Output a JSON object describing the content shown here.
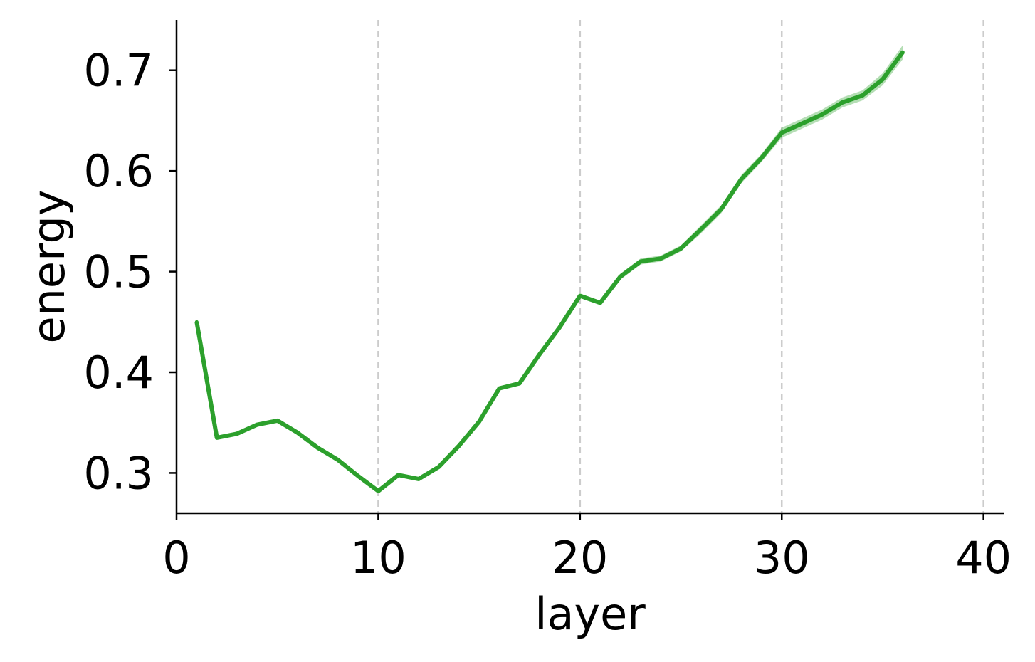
{
  "chart_data": {
    "type": "line",
    "xlabel": "layer",
    "ylabel": "energy",
    "xlim": [
      0,
      41
    ],
    "ylim": [
      0.26,
      0.75
    ],
    "xticks": [
      0,
      10,
      20,
      30,
      40
    ],
    "xtick_labels": [
      "0",
      "10",
      "20",
      "30",
      "40"
    ],
    "yticks": [
      0.3,
      0.4,
      0.5,
      0.6,
      0.7
    ],
    "ytick_labels": [
      "0.3",
      "0.4",
      "0.5",
      "0.6",
      "0.7"
    ],
    "grid": "vertical dashed at x ticks",
    "legend": "none",
    "series": [
      {
        "color": "#2ca02c",
        "band_color": "#2ca02c",
        "x": [
          1,
          2,
          3,
          4,
          5,
          6,
          7,
          8,
          9,
          10,
          11,
          12,
          13,
          14,
          15,
          16,
          17,
          18,
          19,
          20,
          21,
          22,
          23,
          24,
          25,
          26,
          27,
          28,
          29,
          30,
          31,
          32,
          33,
          34,
          35,
          36
        ],
        "values": [
          0.45,
          0.335,
          0.339,
          0.348,
          0.352,
          0.34,
          0.325,
          0.313,
          0.297,
          0.282,
          0.298,
          0.294,
          0.306,
          0.327,
          0.351,
          0.384,
          0.389,
          0.418,
          0.445,
          0.476,
          0.469,
          0.495,
          0.51,
          0.513,
          0.523,
          0.542,
          0.562,
          0.592,
          0.613,
          0.638,
          0.647,
          0.656,
          0.668,
          0.675,
          0.691,
          0.718
        ],
        "band": [
          0.001,
          0.001,
          0.001,
          0.001,
          0.001,
          0.001,
          0.001,
          0.001,
          0.001,
          0.001,
          0.001,
          0.001,
          0.001,
          0.001,
          0.001,
          0.001,
          0.001,
          0.002,
          0.002,
          0.002,
          0.002,
          0.003,
          0.003,
          0.003,
          0.003,
          0.004,
          0.004,
          0.004,
          0.004,
          0.005,
          0.005,
          0.005,
          0.005,
          0.005,
          0.006,
          0.007
        ]
      }
    ]
  }
}
